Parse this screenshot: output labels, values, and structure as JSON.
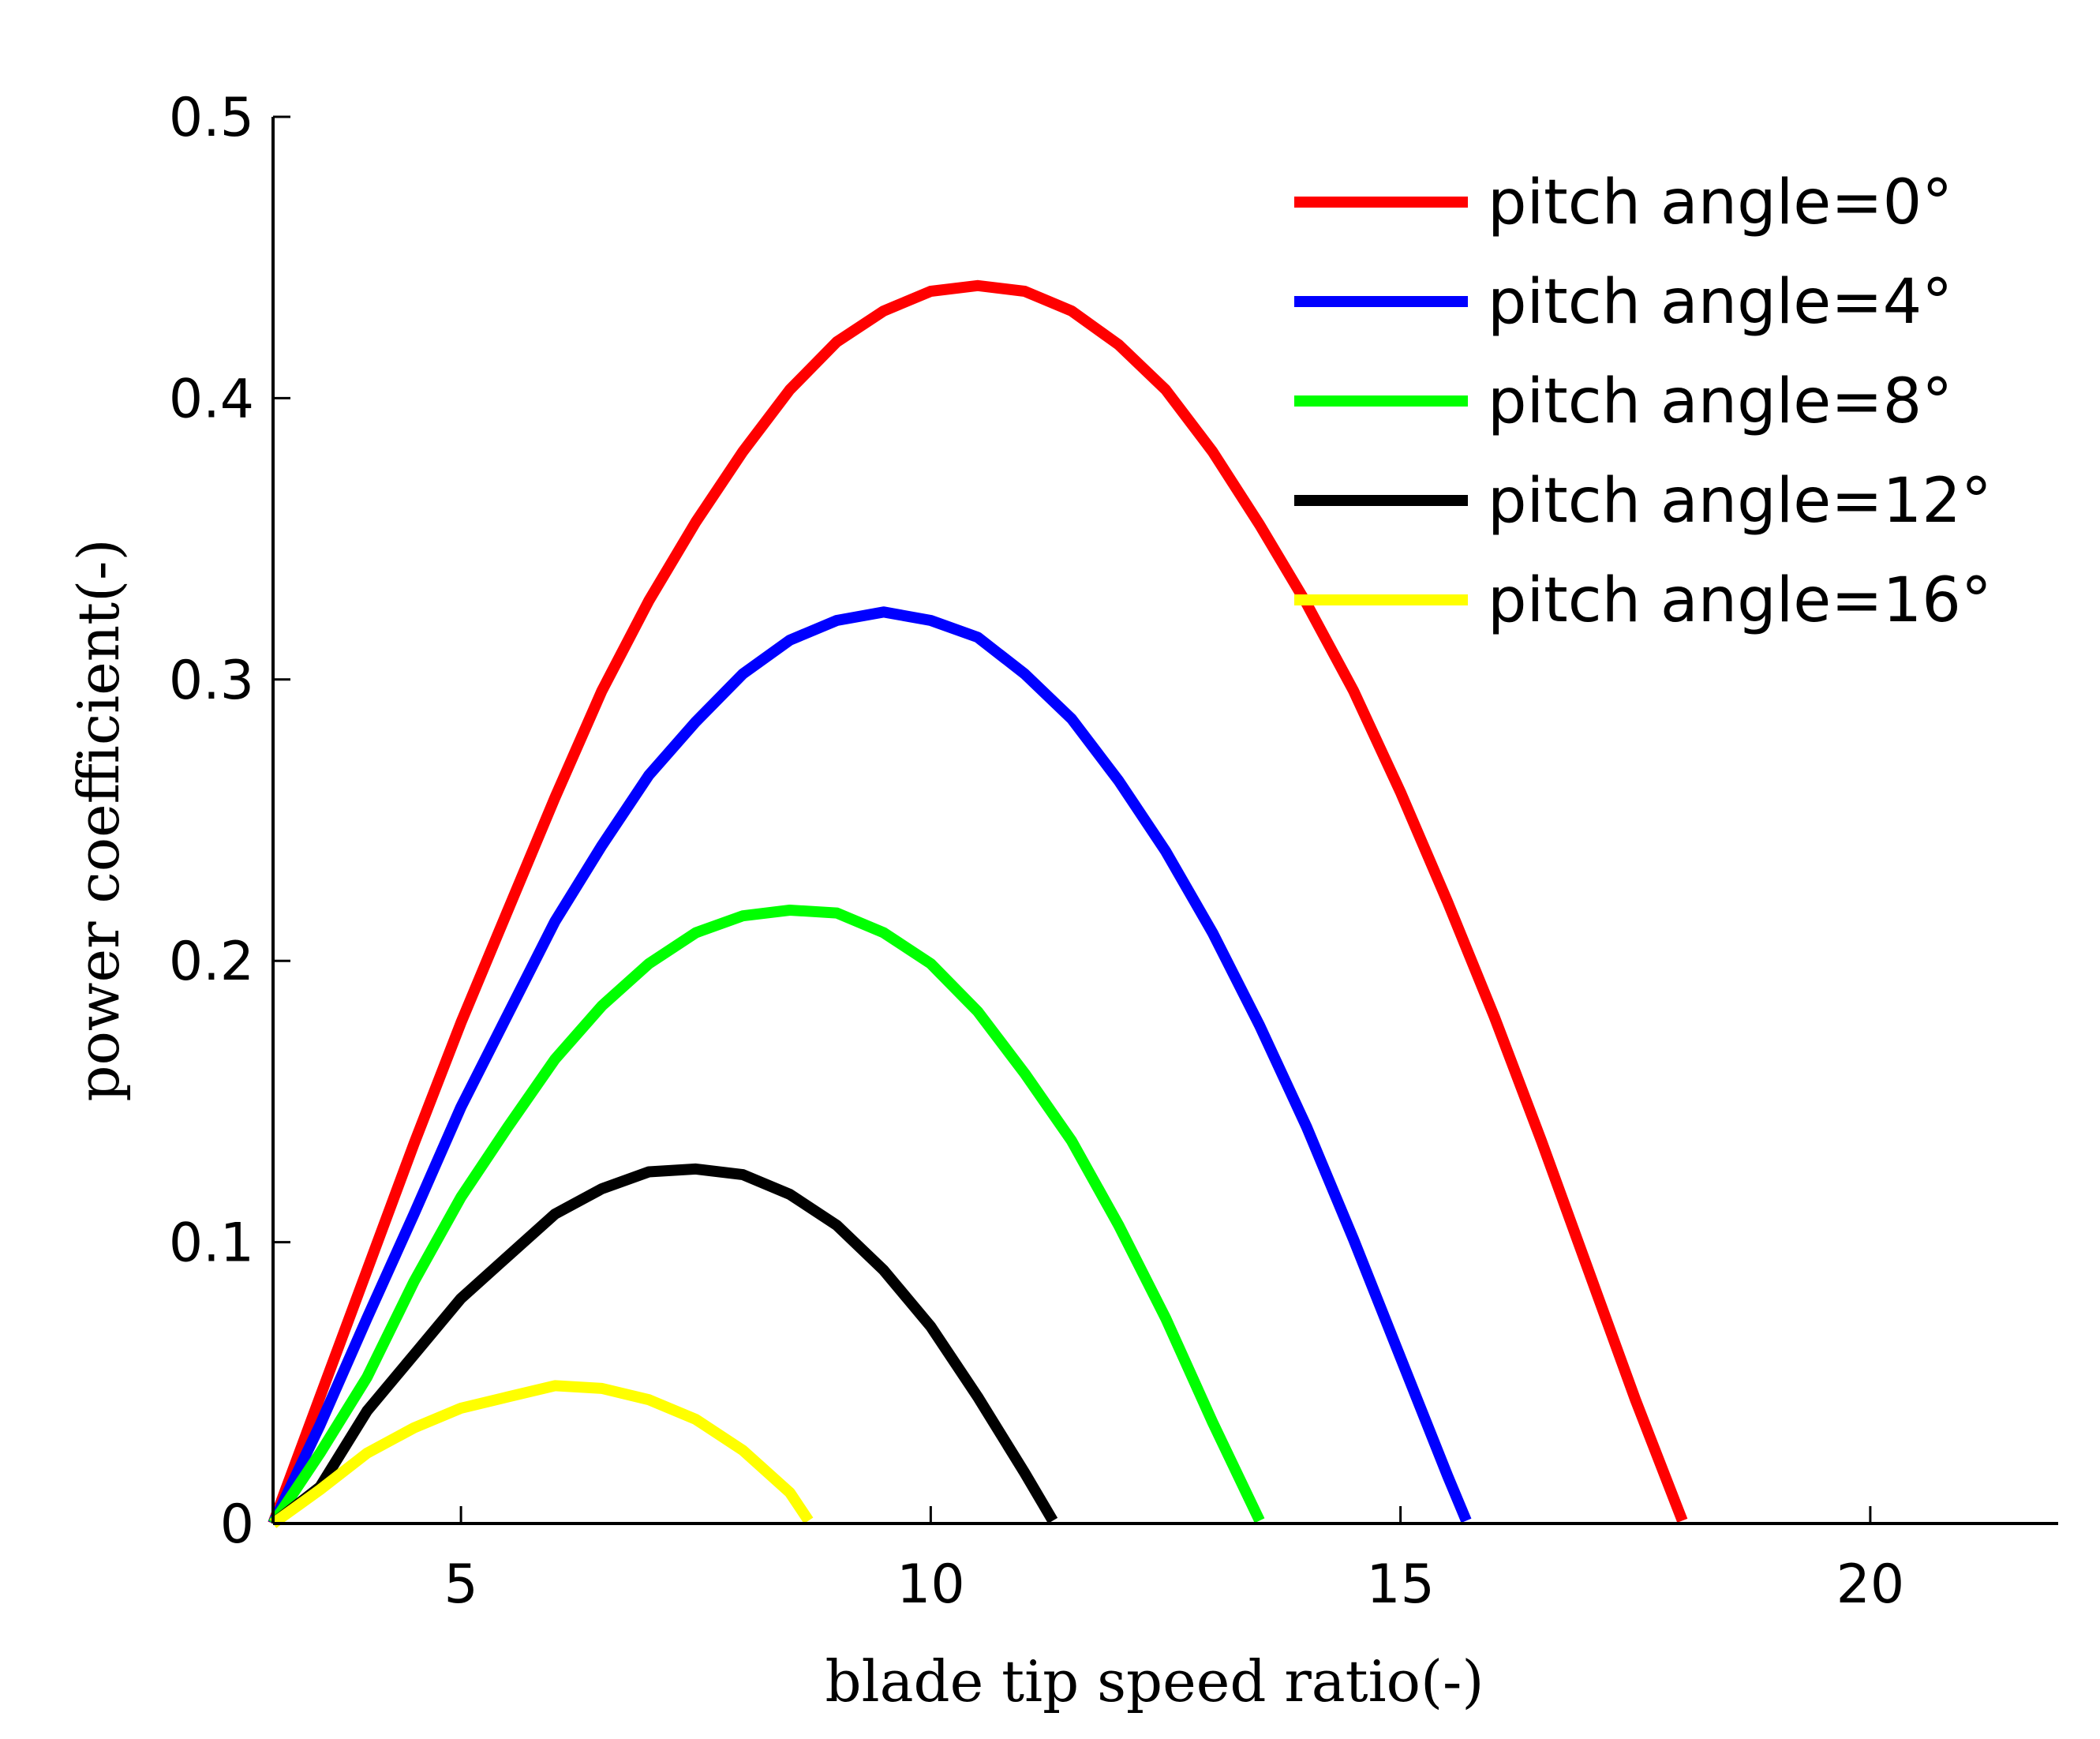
{
  "chart_data": {
    "type": "line",
    "xlabel": "blade tip speed ratio(-)",
    "ylabel": "power coefficient(-)",
    "xlim": [
      3,
      22
    ],
    "ylim": [
      0,
      0.5
    ],
    "xticks": [
      5,
      10,
      15,
      20
    ],
    "yticks": [
      0,
      0.1,
      0.2,
      0.3,
      0.4,
      0.5
    ],
    "ytick_labels": [
      "0",
      "0.1",
      "0.2",
      "0.3",
      "0.4",
      "0.5"
    ],
    "grid": false,
    "legend": "top-right",
    "series": [
      {
        "name": "pitch angle=0°",
        "color": "#ff0000",
        "points": [
          [
            3,
            0
          ],
          [
            3.5,
            0.045
          ],
          [
            4,
            0.09
          ],
          [
            4.5,
            0.135
          ],
          [
            5,
            0.178
          ],
          [
            5.5,
            0.218
          ],
          [
            6,
            0.258
          ],
          [
            6.5,
            0.296
          ],
          [
            7,
            0.328
          ],
          [
            7.5,
            0.356
          ],
          [
            8,
            0.381
          ],
          [
            8.5,
            0.403
          ],
          [
            9,
            0.42
          ],
          [
            9.5,
            0.431
          ],
          [
            10,
            0.438
          ],
          [
            10.5,
            0.44
          ],
          [
            11,
            0.438
          ],
          [
            11.5,
            0.431
          ],
          [
            12,
            0.419
          ],
          [
            12.5,
            0.403
          ],
          [
            13,
            0.381
          ],
          [
            13.5,
            0.355
          ],
          [
            14,
            0.327
          ],
          [
            14.5,
            0.296
          ],
          [
            15,
            0.26
          ],
          [
            15.5,
            0.221
          ],
          [
            16,
            0.18
          ],
          [
            16.5,
            0.136
          ],
          [
            17,
            0.09
          ],
          [
            17.5,
            0.044
          ],
          [
            18,
            0.001
          ]
        ]
      },
      {
        "name": "pitch angle=4°",
        "color": "#0000ff",
        "points": [
          [
            3,
            0
          ],
          [
            3.5,
            0.035
          ],
          [
            4,
            0.073
          ],
          [
            4.5,
            0.11
          ],
          [
            5,
            0.148
          ],
          [
            5.5,
            0.181
          ],
          [
            6,
            0.214
          ],
          [
            6.5,
            0.241
          ],
          [
            7,
            0.266
          ],
          [
            7.5,
            0.285
          ],
          [
            8,
            0.302
          ],
          [
            8.5,
            0.314
          ],
          [
            9,
            0.321
          ],
          [
            9.5,
            0.324
          ],
          [
            10,
            0.321
          ],
          [
            10.5,
            0.315
          ],
          [
            11,
            0.302
          ],
          [
            11.5,
            0.286
          ],
          [
            12,
            0.264
          ],
          [
            12.5,
            0.239
          ],
          [
            13,
            0.21
          ],
          [
            13.5,
            0.177
          ],
          [
            14,
            0.141
          ],
          [
            14.5,
            0.101
          ],
          [
            15,
            0.059
          ],
          [
            15.5,
            0.017
          ],
          [
            15.7,
            0.001
          ]
        ]
      },
      {
        "name": "pitch angle=8°",
        "color": "#00ff00",
        "points": [
          [
            3,
            0
          ],
          [
            3.5,
            0.025
          ],
          [
            4,
            0.052
          ],
          [
            4.5,
            0.086
          ],
          [
            5,
            0.116
          ],
          [
            5.5,
            0.141
          ],
          [
            6,
            0.165
          ],
          [
            6.5,
            0.184
          ],
          [
            7,
            0.199
          ],
          [
            7.5,
            0.21
          ],
          [
            8,
            0.216
          ],
          [
            8.5,
            0.218
          ],
          [
            9,
            0.217
          ],
          [
            9.5,
            0.21
          ],
          [
            10,
            0.199
          ],
          [
            10.5,
            0.182
          ],
          [
            11,
            0.16
          ],
          [
            11.5,
            0.136
          ],
          [
            12,
            0.106
          ],
          [
            12.5,
            0.073
          ],
          [
            13,
            0.036
          ],
          [
            13.5,
            0.001
          ]
        ]
      },
      {
        "name": "pitch angle=12°",
        "color": "#000000",
        "points": [
          [
            3,
            0
          ],
          [
            3.5,
            0.013
          ],
          [
            4,
            0.04
          ],
          [
            4.5,
            0.06
          ],
          [
            5,
            0.08
          ],
          [
            5.5,
            0.095
          ],
          [
            6,
            0.11
          ],
          [
            6.5,
            0.119
          ],
          [
            7,
            0.125
          ],
          [
            7.5,
            0.126
          ],
          [
            8,
            0.124
          ],
          [
            8.5,
            0.117
          ],
          [
            9,
            0.106
          ],
          [
            9.5,
            0.09
          ],
          [
            10,
            0.07
          ],
          [
            10.5,
            0.045
          ],
          [
            11,
            0.018
          ],
          [
            11.3,
            0.001
          ]
        ]
      },
      {
        "name": "pitch angle=16°",
        "color": "#ffff00",
        "points": [
          [
            3,
            0
          ],
          [
            3.5,
            0.012
          ],
          [
            4,
            0.025
          ],
          [
            4.5,
            0.034
          ],
          [
            5,
            0.041
          ],
          [
            5.5,
            0.045
          ],
          [
            6,
            0.049
          ],
          [
            6.5,
            0.048
          ],
          [
            7,
            0.044
          ],
          [
            7.5,
            0.037
          ],
          [
            8,
            0.026
          ],
          [
            8.5,
            0.011
          ],
          [
            8.7,
            0.001
          ]
        ]
      }
    ]
  }
}
